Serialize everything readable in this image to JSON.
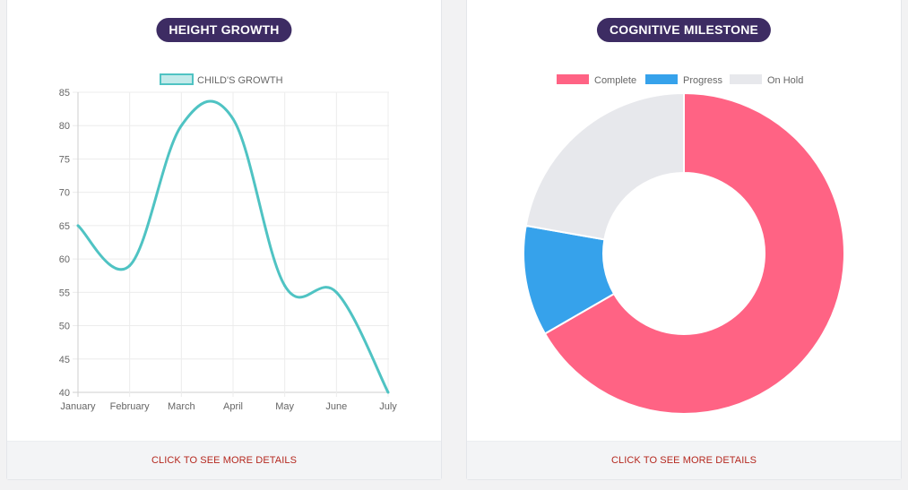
{
  "panels": [
    {
      "title": "HEIGHT GROWTH",
      "footer_link": "CLICK TO SEE MORE DETAILS"
    },
    {
      "title": "COGNITIVE MILESTONE",
      "footer_link": "CLICK TO SEE MORE DETAILS"
    }
  ],
  "chart_data": [
    {
      "type": "line",
      "x": [
        "January",
        "February",
        "March",
        "April",
        "May",
        "June",
        "July"
      ],
      "series": [
        {
          "name": "CHILD'S GROWTH",
          "values": [
            65,
            59,
            80,
            81,
            56,
            55,
            40
          ],
          "color": "#4fc3c3"
        }
      ],
      "ylim": [
        40,
        85
      ],
      "yticks": [
        85,
        80,
        75,
        70,
        65,
        60,
        55,
        50,
        45,
        40
      ],
      "grid": true,
      "legend": "top-center"
    },
    {
      "type": "pie",
      "variant": "doughnut",
      "labels": [
        "Complete",
        "Progress",
        "On Hold"
      ],
      "values": [
        300,
        50,
        100
      ],
      "colors": [
        "#ff6384",
        "#36a2eb",
        "#e7e8ec"
      ],
      "legend": "top-center"
    }
  ]
}
